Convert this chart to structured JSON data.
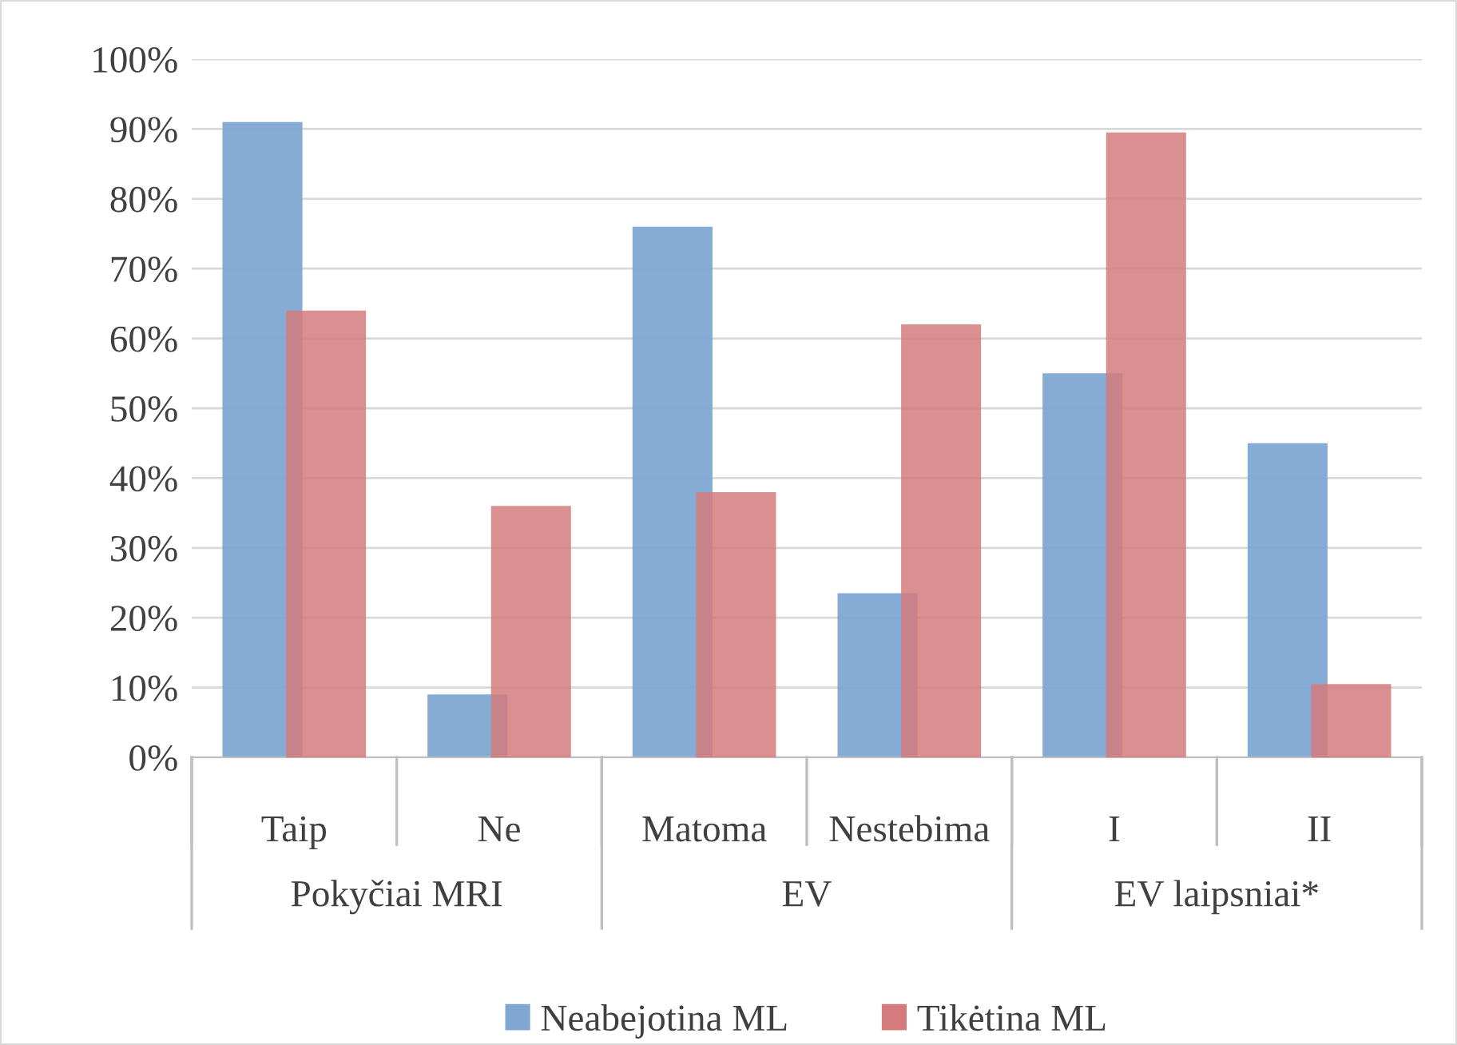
{
  "chart_data": {
    "type": "bar",
    "categories": [
      "Taip",
      "Ne",
      "Matoma",
      "Nestebima",
      "I",
      "II"
    ],
    "annotations": [
      "Pokyčiai MRI",
      "EV",
      "EV laipsniai*"
    ],
    "series": [
      {
        "name": "Neabejotina ML",
        "color": "#7fa7d2",
        "values": [
          91,
          9,
          76,
          23.5,
          55,
          45
        ]
      },
      {
        "name": "Tikėtina ML",
        "color": "#d47b7d",
        "values": [
          64,
          36,
          38,
          62,
          89.5,
          10.5
        ]
      }
    ],
    "ylim": [
      0,
      100
    ],
    "yticks": [
      {
        "value": 0,
        "label": "0%"
      },
      {
        "value": 10,
        "label": "10%"
      },
      {
        "value": 20,
        "label": "20%"
      },
      {
        "value": 30,
        "label": "30%"
      },
      {
        "value": 40,
        "label": "40%"
      },
      {
        "value": 50,
        "label": "50%"
      },
      {
        "value": 60,
        "label": "60%"
      },
      {
        "value": 70,
        "label": "70%"
      },
      {
        "value": 80,
        "label": "80%"
      },
      {
        "value": 90,
        "label": "90%"
      },
      {
        "value": 100,
        "label": "100%"
      }
    ],
    "grid": "y",
    "legend": "bottom"
  }
}
